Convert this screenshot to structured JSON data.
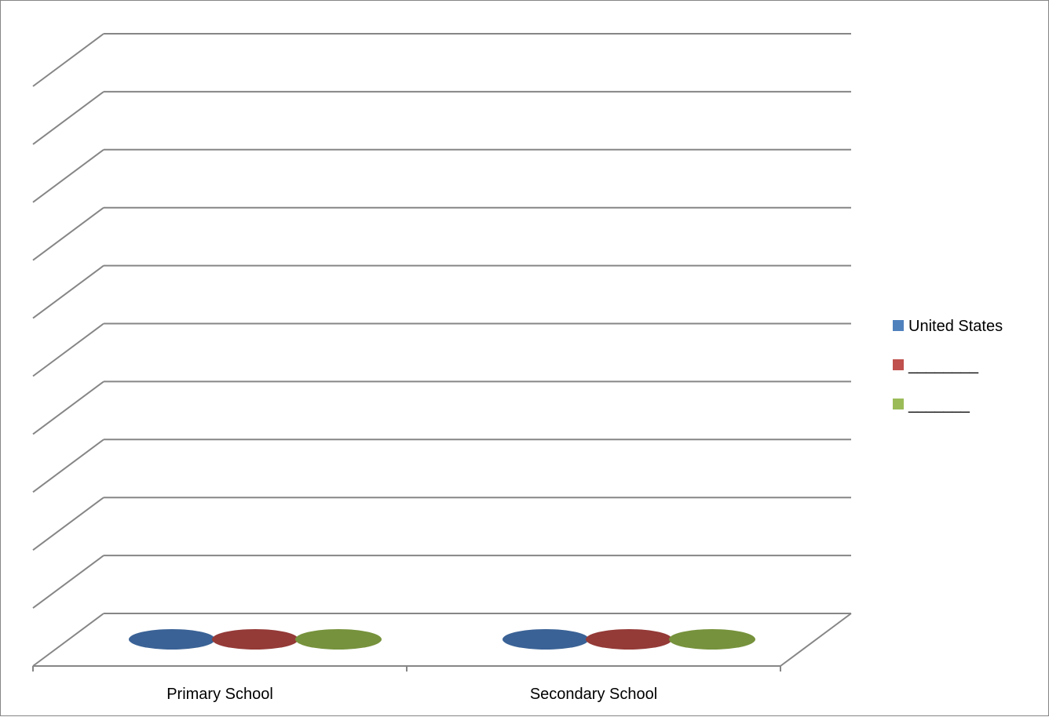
{
  "chart_data": {
    "type": "bar",
    "style": "3d-cylinder",
    "categories": [
      "Primary School",
      "Secondary School"
    ],
    "series": [
      {
        "name": "United States",
        "values": [
          0,
          0
        ],
        "color": "#4F81BD",
        "top_color": "#3A6296"
      },
      {
        "name": "________",
        "values": [
          0,
          0
        ],
        "color": "#C0504D",
        "top_color": "#943A37"
      },
      {
        "name": " _______",
        "values": [
          0,
          0
        ],
        "color": "#9BBB59",
        "top_color": "#76923C"
      }
    ],
    "gridlines": 11,
    "grid": true,
    "legend_position": "right",
    "title": "",
    "xlabel": "",
    "ylabel": ""
  }
}
